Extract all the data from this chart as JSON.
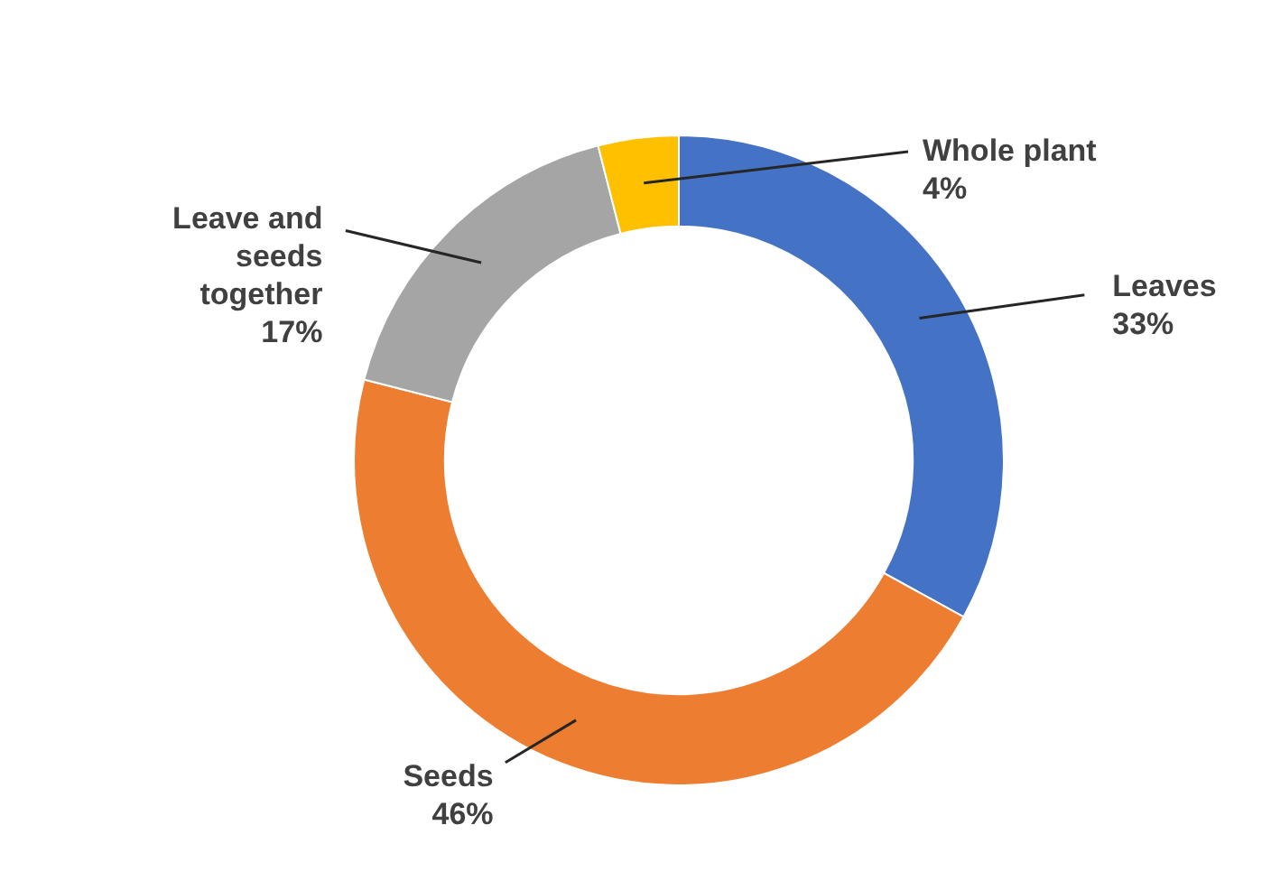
{
  "chart_data": {
    "type": "donut",
    "categories": [
      "Leaves",
      "Seeds",
      "Leave and seeds together",
      "Whole plant"
    ],
    "values": [
      33,
      46,
      17,
      4
    ],
    "value_labels": [
      "33%",
      "46%",
      "17%",
      "4%"
    ],
    "colors": [
      "#4472c4",
      "#ed7d31",
      "#a5a5a5",
      "#ffc000"
    ]
  }
}
